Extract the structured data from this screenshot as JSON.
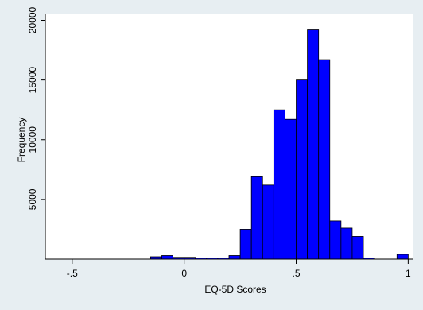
{
  "chart_data": {
    "type": "bar",
    "title": "",
    "xlabel": "EQ-5D Scores",
    "ylabel": "Frequency",
    "xlim": [
      -0.62,
      1.02
    ],
    "ylim": [
      0,
      20500
    ],
    "x_ticks": [
      {
        "value": -0.5,
        "label": "-.5"
      },
      {
        "value": 0,
        "label": "0"
      },
      {
        "value": 0.5,
        "label": ".5"
      },
      {
        "value": 1,
        "label": "1"
      }
    ],
    "y_ticks": [
      {
        "value": 5000,
        "label": "5000"
      },
      {
        "value": 10000,
        "label": "10000"
      },
      {
        "value": 15000,
        "label": "15000"
      },
      {
        "value": 20000,
        "label": "20000"
      }
    ],
    "bar_color": "#0000ff",
    "bar_stroke": "#000000",
    "background": "#e7eef2",
    "plot_background": "#ffffff",
    "grid": false,
    "bins": [
      {
        "x0": -0.15,
        "x1": -0.1,
        "value": 200
      },
      {
        "x0": -0.1,
        "x1": -0.05,
        "value": 300
      },
      {
        "x0": -0.05,
        "x1": 0.0,
        "value": 150
      },
      {
        "x0": 0.0,
        "x1": 0.05,
        "value": 150
      },
      {
        "x0": 0.05,
        "x1": 0.1,
        "value": 100
      },
      {
        "x0": 0.1,
        "x1": 0.15,
        "value": 100
      },
      {
        "x0": 0.15,
        "x1": 0.2,
        "value": 100
      },
      {
        "x0": 0.2,
        "x1": 0.25,
        "value": 300
      },
      {
        "x0": 0.25,
        "x1": 0.3,
        "value": 2500
      },
      {
        "x0": 0.3,
        "x1": 0.35,
        "value": 6900
      },
      {
        "x0": 0.35,
        "x1": 0.4,
        "value": 6200
      },
      {
        "x0": 0.4,
        "x1": 0.45,
        "value": 12500
      },
      {
        "x0": 0.45,
        "x1": 0.5,
        "value": 11700
      },
      {
        "x0": 0.5,
        "x1": 0.55,
        "value": 15000
      },
      {
        "x0": 0.55,
        "x1": 0.6,
        "value": 19200
      },
      {
        "x0": 0.6,
        "x1": 0.65,
        "value": 16700
      },
      {
        "x0": 0.65,
        "x1": 0.7,
        "value": 3200
      },
      {
        "x0": 0.7,
        "x1": 0.75,
        "value": 2600
      },
      {
        "x0": 0.75,
        "x1": 0.8,
        "value": 1900
      },
      {
        "x0": 0.8,
        "x1": 0.85,
        "value": 100
      },
      {
        "x0": 0.95,
        "x1": 1.0,
        "value": 400
      }
    ]
  }
}
